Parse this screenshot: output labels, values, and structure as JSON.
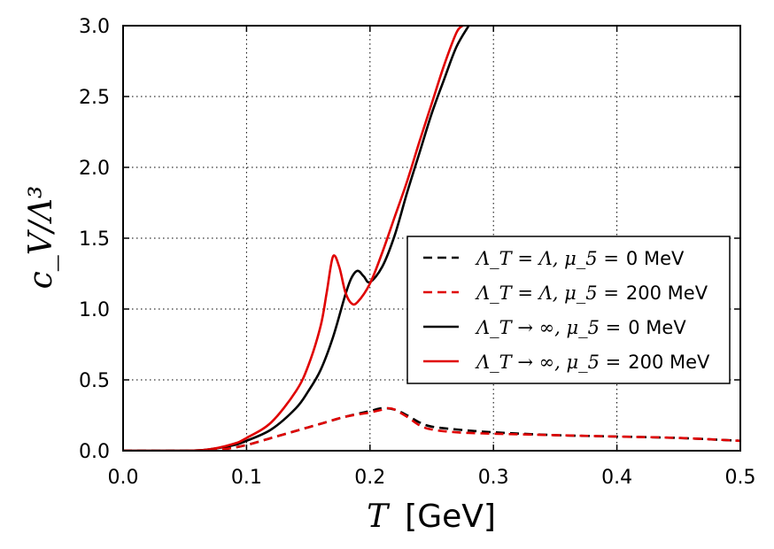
{
  "chart_data": {
    "type": "line",
    "title": "",
    "xlabel_var": "T",
    "xlabel_unit": "[GeV]",
    "ylabel": "c_V/Λ³",
    "xlim": [
      0.0,
      0.5
    ],
    "ylim": [
      0.0,
      3.0
    ],
    "xticks": [
      "0.0",
      "0.1",
      "0.2",
      "0.3",
      "0.4",
      "0.5"
    ],
    "yticks": [
      "0.0",
      "0.5",
      "1.0",
      "1.5",
      "2.0",
      "2.5",
      "3.0"
    ],
    "grid": true,
    "legend_position": "center-right",
    "series": [
      {
        "name": "ΛT = Λ, μ5 = 0 MeV",
        "legend_math": "Λ_T = Λ, μ_5 =",
        "legend_value": "0 MeV",
        "color": "#000000",
        "style": "dashed",
        "x": [
          0.0,
          0.05,
          0.08,
          0.1,
          0.12,
          0.14,
          0.16,
          0.18,
          0.2,
          0.21,
          0.22,
          0.23,
          0.24,
          0.25,
          0.27,
          0.3,
          0.35,
          0.4,
          0.45,
          0.5
        ],
        "y": [
          0.0,
          0.0,
          0.01,
          0.04,
          0.09,
          0.14,
          0.19,
          0.24,
          0.28,
          0.3,
          0.29,
          0.25,
          0.2,
          0.17,
          0.15,
          0.13,
          0.11,
          0.1,
          0.09,
          0.07
        ]
      },
      {
        "name": "ΛT = Λ, μ5 = 200 MeV",
        "legend_math": "Λ_T = Λ, μ_5 =",
        "legend_value": "200 MeV",
        "color": "#e00000",
        "style": "dashed",
        "x": [
          0.0,
          0.05,
          0.08,
          0.1,
          0.12,
          0.14,
          0.16,
          0.18,
          0.2,
          0.21,
          0.215,
          0.22,
          0.23,
          0.24,
          0.25,
          0.27,
          0.3,
          0.35,
          0.4,
          0.45,
          0.5
        ],
        "y": [
          0.0,
          0.0,
          0.01,
          0.04,
          0.09,
          0.14,
          0.19,
          0.24,
          0.27,
          0.29,
          0.3,
          0.29,
          0.24,
          0.18,
          0.15,
          0.13,
          0.12,
          0.11,
          0.1,
          0.09,
          0.07
        ]
      },
      {
        "name": "ΛT → ∞, μ5 = 0 MeV",
        "legend_math": "Λ_T → ∞, μ_5 =",
        "legend_value": "0 MeV",
        "color": "#000000",
        "style": "solid",
        "x": [
          0.0,
          0.05,
          0.07,
          0.09,
          0.1,
          0.12,
          0.14,
          0.15,
          0.16,
          0.17,
          0.18,
          0.185,
          0.19,
          0.195,
          0.2,
          0.21,
          0.22,
          0.23,
          0.24,
          0.25,
          0.26,
          0.27,
          0.28
        ],
        "y": [
          0.0,
          0.0,
          0.01,
          0.04,
          0.07,
          0.15,
          0.3,
          0.42,
          0.57,
          0.8,
          1.1,
          1.22,
          1.27,
          1.23,
          1.19,
          1.3,
          1.52,
          1.82,
          2.1,
          2.38,
          2.62,
          2.85,
          3.0
        ]
      },
      {
        "name": "ΛT → ∞, μ5 = 200 MeV",
        "legend_math": "Λ_T → ∞, μ_5 =",
        "legend_value": "200 MeV",
        "color": "#e00000",
        "style": "solid",
        "x": [
          0.0,
          0.05,
          0.07,
          0.09,
          0.1,
          0.12,
          0.14,
          0.15,
          0.16,
          0.165,
          0.17,
          0.175,
          0.18,
          0.185,
          0.19,
          0.2,
          0.21,
          0.22,
          0.23,
          0.24,
          0.25,
          0.26,
          0.27,
          0.275
        ],
        "y": [
          0.0,
          0.0,
          0.01,
          0.05,
          0.09,
          0.2,
          0.42,
          0.6,
          0.88,
          1.12,
          1.37,
          1.3,
          1.12,
          1.04,
          1.05,
          1.18,
          1.4,
          1.65,
          1.9,
          2.18,
          2.45,
          2.72,
          2.95,
          3.0
        ]
      }
    ]
  }
}
